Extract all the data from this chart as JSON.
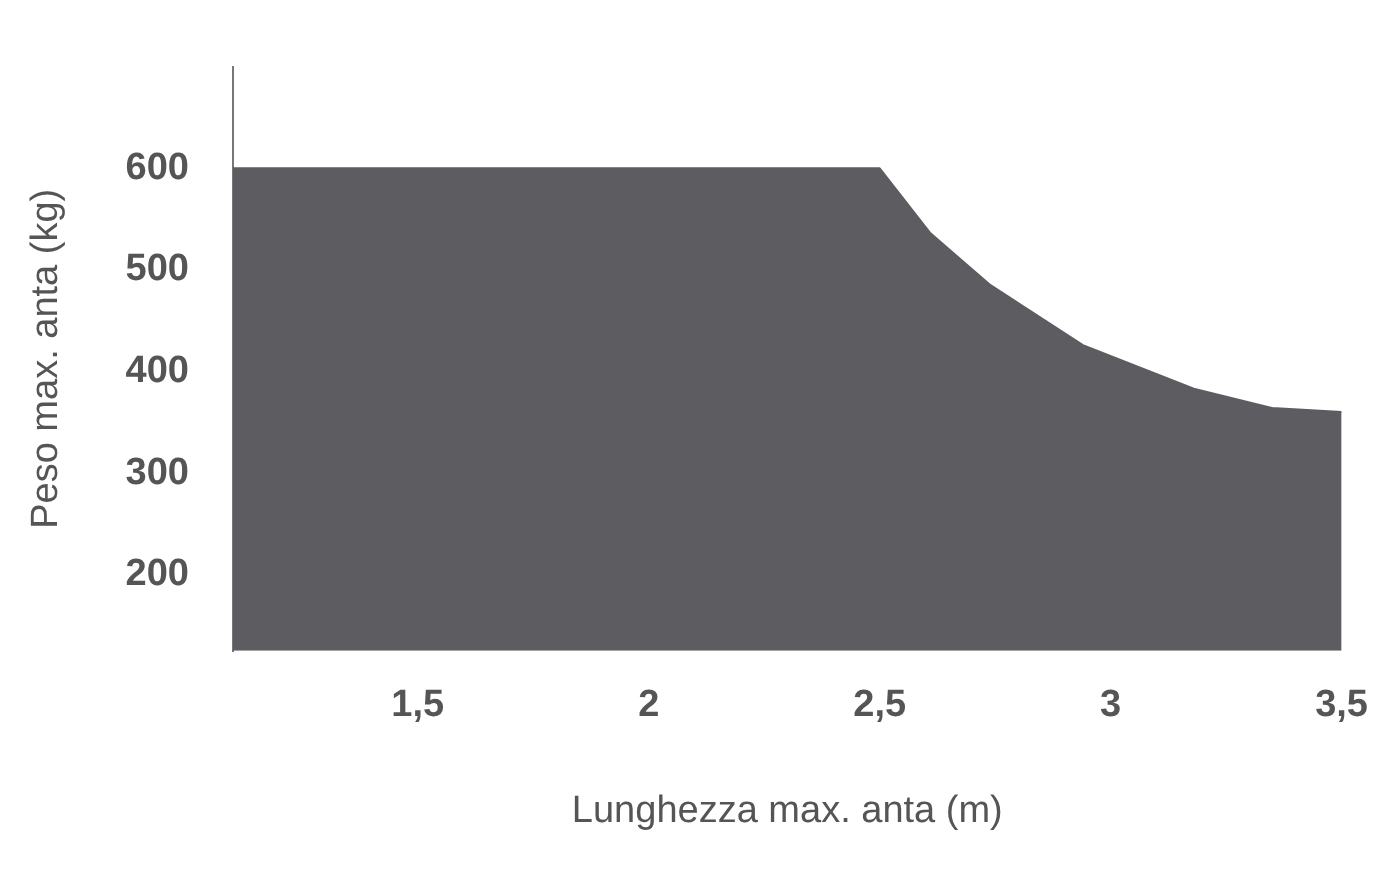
{
  "chart_data": {
    "type": "area",
    "xlabel": "Lunghezza max. anta (m)",
    "ylabel": "Peso max. anta (kg)",
    "x": [
      1.1,
      1.5,
      2,
      2.5,
      2.61,
      2.74,
      2.94,
      3.18,
      3.35,
      3.5
    ],
    "series": [
      {
        "color": "#5d5c60",
        "values": [
          600,
          600,
          600,
          600,
          536,
          485,
          426,
          383,
          364,
          360
        ]
      }
    ],
    "xlim": [
      1.1,
      3.5
    ],
    "xticks": [
      {
        "value": 1.5,
        "label": "1,5"
      },
      2,
      {
        "value": 2.5,
        "label": "2,5"
      },
      3,
      {
        "value": 3.5,
        "label": "3,5"
      }
    ],
    "ylim": [
      125,
      700
    ],
    "yticks": [
      200,
      300,
      400,
      500,
      600
    ],
    "grid": false,
    "legend": false
  }
}
